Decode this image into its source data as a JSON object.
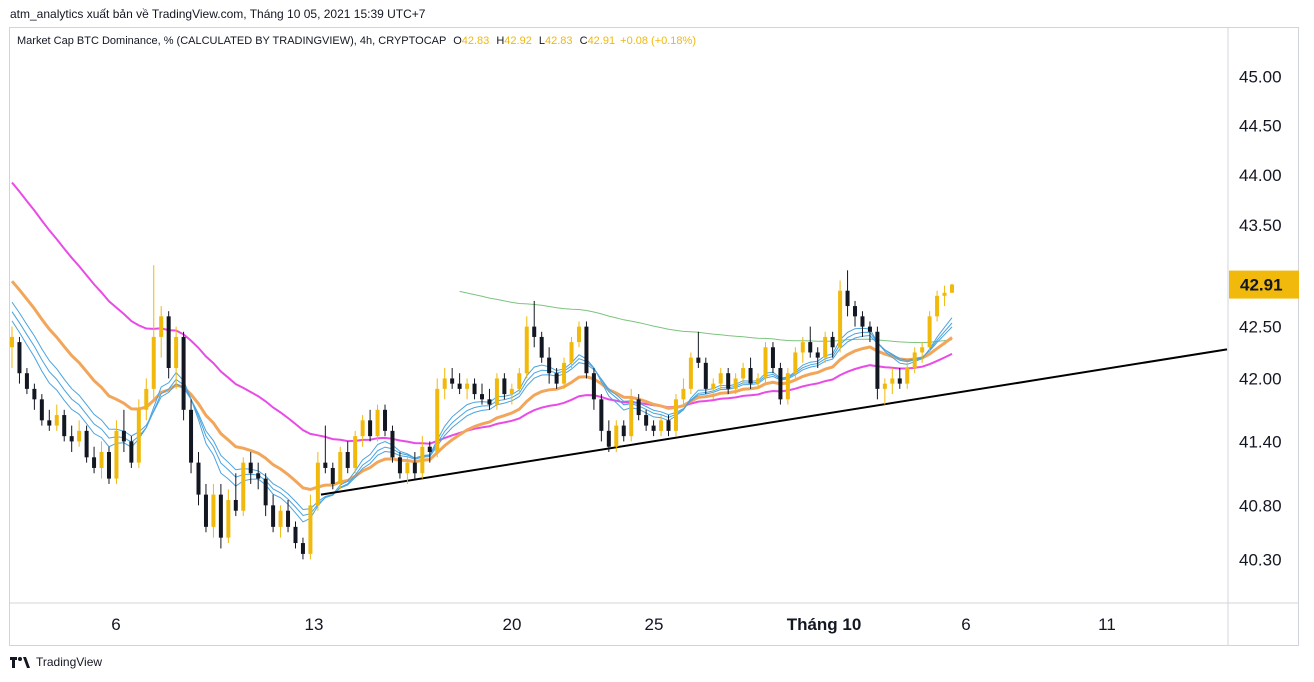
{
  "header": {
    "publisher_line": "atm_analytics xuất bản về TradingView.com, Tháng 10 05, 2021 15:39 UTC+7"
  },
  "legend": {
    "symbol": "Market Cap BTC Dominance, % (CALCULATED BY TRADINGVIEW), 4h, CRYPTOCAP",
    "o_label": "O",
    "o_value": "42.83",
    "h_label": "H",
    "h_value": "42.92",
    "l_label": "L",
    "l_value": "42.83",
    "c_label": "C",
    "c_value": "42.91",
    "change": "+0.08 (+0.18%)"
  },
  "footer": {
    "brand": "TradingView",
    "logo_icon": "tradingview-logo-icon"
  },
  "colors": {
    "candle_up": "#f0b90b",
    "candle_down": "#131722",
    "ema_orange": "#f2a65a",
    "ema_magenta": "#e94be6",
    "ema_green": "#7cc47f",
    "ribbon_blue": "#4aa3df",
    "trendline": "#000000",
    "price_tag": "#f0b90b"
  },
  "chart_data": {
    "type": "candlestick",
    "symbol": "Market Cap BTC Dominance, %",
    "timeframe": "4h",
    "x_ticks": [
      "6",
      "13",
      "20",
      "25",
      "Tháng 10",
      "6",
      "11"
    ],
    "y_ticks": [
      "45.00",
      "44.50",
      "44.00",
      "43.50",
      "42.50",
      "42.00",
      "41.40",
      "40.80",
      "40.30"
    ],
    "y_scale": "log",
    "ylim": [
      39.9,
      45.5
    ],
    "last_price": "42.91",
    "candles_ohlc": [
      [
        42.3,
        42.5,
        42.1,
        42.4
      ],
      [
        42.35,
        42.4,
        41.95,
        42.05
      ],
      [
        42.05,
        42.1,
        41.85,
        41.9
      ],
      [
        41.9,
        41.95,
        41.7,
        41.8
      ],
      [
        41.8,
        41.85,
        41.55,
        41.6
      ],
      [
        41.6,
        41.7,
        41.5,
        41.55
      ],
      [
        41.55,
        41.75,
        41.5,
        41.65
      ],
      [
        41.65,
        41.7,
        41.4,
        41.45
      ],
      [
        41.45,
        41.55,
        41.3,
        41.4
      ],
      [
        41.4,
        41.6,
        41.35,
        41.5
      ],
      [
        41.5,
        41.55,
        41.2,
        41.25
      ],
      [
        41.25,
        41.35,
        41.1,
        41.15
      ],
      [
        41.15,
        41.4,
        41.05,
        41.3
      ],
      [
        41.3,
        41.35,
        41.0,
        41.05
      ],
      [
        41.05,
        41.6,
        41.0,
        41.5
      ],
      [
        41.5,
        41.7,
        41.3,
        41.4
      ],
      [
        41.4,
        41.45,
        41.15,
        41.2
      ],
      [
        41.2,
        41.8,
        41.15,
        41.7
      ],
      [
        41.7,
        42.0,
        41.6,
        41.9
      ],
      [
        41.9,
        43.1,
        41.8,
        42.4
      ],
      [
        42.4,
        42.7,
        42.2,
        42.6
      ],
      [
        42.6,
        42.65,
        42.0,
        42.1
      ],
      [
        42.1,
        42.5,
        41.9,
        42.4
      ],
      [
        42.4,
        42.45,
        41.6,
        41.7
      ],
      [
        41.7,
        41.8,
        41.1,
        41.2
      ],
      [
        41.2,
        41.3,
        40.8,
        40.9
      ],
      [
        40.9,
        41.0,
        40.55,
        40.6
      ],
      [
        40.6,
        41.0,
        40.5,
        40.9
      ],
      [
        40.9,
        41.0,
        40.4,
        40.5
      ],
      [
        40.5,
        40.95,
        40.45,
        40.85
      ],
      [
        40.85,
        41.1,
        40.7,
        40.75
      ],
      [
        40.75,
        41.25,
        40.7,
        41.2
      ],
      [
        41.2,
        41.3,
        41.0,
        41.1
      ],
      [
        41.1,
        41.2,
        40.95,
        41.05
      ],
      [
        41.05,
        41.1,
        40.7,
        40.8
      ],
      [
        40.8,
        40.9,
        40.55,
        40.6
      ],
      [
        40.6,
        40.8,
        40.5,
        40.75
      ],
      [
        40.75,
        40.85,
        40.55,
        40.6
      ],
      [
        40.6,
        40.65,
        40.4,
        40.45
      ],
      [
        40.45,
        40.5,
        40.3,
        40.35
      ],
      [
        40.35,
        40.9,
        40.3,
        40.8
      ],
      [
        40.8,
        41.3,
        40.75,
        41.2
      ],
      [
        41.2,
        41.55,
        41.1,
        41.15
      ],
      [
        41.15,
        41.2,
        40.95,
        41.0
      ],
      [
        41.0,
        41.35,
        40.95,
        41.3
      ],
      [
        41.3,
        41.4,
        41.1,
        41.15
      ],
      [
        41.15,
        41.5,
        41.1,
        41.45
      ],
      [
        41.45,
        41.65,
        41.35,
        41.6
      ],
      [
        41.6,
        41.7,
        41.4,
        41.45
      ],
      [
        41.45,
        41.75,
        41.4,
        41.7
      ],
      [
        41.7,
        41.75,
        41.45,
        41.5
      ],
      [
        41.5,
        41.55,
        41.2,
        41.25
      ],
      [
        41.25,
        41.3,
        41.05,
        41.1
      ],
      [
        41.1,
        41.25,
        41.0,
        41.2
      ],
      [
        41.2,
        41.3,
        41.05,
        41.1
      ],
      [
        41.1,
        41.45,
        41.05,
        41.35
      ],
      [
        41.35,
        41.4,
        41.2,
        41.3
      ],
      [
        41.3,
        42.0,
        41.25,
        41.9
      ],
      [
        41.9,
        42.1,
        41.8,
        42.0
      ],
      [
        42.0,
        42.1,
        41.9,
        41.95
      ],
      [
        41.95,
        42.05,
        41.85,
        41.9
      ],
      [
        41.9,
        42.0,
        41.8,
        41.95
      ],
      [
        41.95,
        42.0,
        41.8,
        41.85
      ],
      [
        41.85,
        41.95,
        41.75,
        41.8
      ],
      [
        41.8,
        41.9,
        41.7,
        41.75
      ],
      [
        41.75,
        42.05,
        41.7,
        42.0
      ],
      [
        42.0,
        42.05,
        41.8,
        41.85
      ],
      [
        41.85,
        41.95,
        41.75,
        41.9
      ],
      [
        41.9,
        42.1,
        41.85,
        42.05
      ],
      [
        42.05,
        42.6,
        42.0,
        42.5
      ],
      [
        42.5,
        42.75,
        42.3,
        42.4
      ],
      [
        42.4,
        42.45,
        42.15,
        42.2
      ],
      [
        42.2,
        42.3,
        41.95,
        42.05
      ],
      [
        42.05,
        42.1,
        41.9,
        41.95
      ],
      [
        41.95,
        42.2,
        41.9,
        42.15
      ],
      [
        42.15,
        42.4,
        42.1,
        42.35
      ],
      [
        42.35,
        42.55,
        42.3,
        42.5
      ],
      [
        42.5,
        42.55,
        42.0,
        42.05
      ],
      [
        42.05,
        42.1,
        41.7,
        41.8
      ],
      [
        41.8,
        41.85,
        41.4,
        41.5
      ],
      [
        41.5,
        41.6,
        41.3,
        41.35
      ],
      [
        41.35,
        41.6,
        41.3,
        41.55
      ],
      [
        41.55,
        41.6,
        41.4,
        41.45
      ],
      [
        41.45,
        41.9,
        41.4,
        41.8
      ],
      [
        41.8,
        41.85,
        41.6,
        41.65
      ],
      [
        41.65,
        41.7,
        41.5,
        41.55
      ],
      [
        41.55,
        41.6,
        41.45,
        41.5
      ],
      [
        41.5,
        41.65,
        41.45,
        41.6
      ],
      [
        41.6,
        41.65,
        41.45,
        41.5
      ],
      [
        41.5,
        41.85,
        41.45,
        41.8
      ],
      [
        41.8,
        42.0,
        41.75,
        41.9
      ],
      [
        41.9,
        42.25,
        41.85,
        42.2
      ],
      [
        42.2,
        42.45,
        42.1,
        42.15
      ],
      [
        42.15,
        42.2,
        41.85,
        41.9
      ],
      [
        41.9,
        42.0,
        41.8,
        41.95
      ],
      [
        41.95,
        42.1,
        41.9,
        42.05
      ],
      [
        42.05,
        42.1,
        41.85,
        41.9
      ],
      [
        41.9,
        42.05,
        41.85,
        42.0
      ],
      [
        42.0,
        42.15,
        41.95,
        42.1
      ],
      [
        42.1,
        42.2,
        41.9,
        41.95
      ],
      [
        41.95,
        42.05,
        41.9,
        42.0
      ],
      [
        42.0,
        42.35,
        41.95,
        42.3
      ],
      [
        42.3,
        42.35,
        42.05,
        42.1
      ],
      [
        42.1,
        42.15,
        41.75,
        41.8
      ],
      [
        41.8,
        42.1,
        41.75,
        42.05
      ],
      [
        42.05,
        42.3,
        42.0,
        42.25
      ],
      [
        42.25,
        42.4,
        42.15,
        42.35
      ],
      [
        42.35,
        42.5,
        42.2,
        42.25
      ],
      [
        42.25,
        42.3,
        42.1,
        42.2
      ],
      [
        42.2,
        42.45,
        42.15,
        42.4
      ],
      [
        42.4,
        42.45,
        42.2,
        42.3
      ],
      [
        42.3,
        42.95,
        42.25,
        42.85
      ],
      [
        42.85,
        43.05,
        42.6,
        42.7
      ],
      [
        42.7,
        42.75,
        42.5,
        42.6
      ],
      [
        42.6,
        42.65,
        42.4,
        42.5
      ],
      [
        42.5,
        42.55,
        42.35,
        42.45
      ],
      [
        42.45,
        42.5,
        41.8,
        41.9
      ],
      [
        41.9,
        42.0,
        41.75,
        41.95
      ],
      [
        41.95,
        42.1,
        41.85,
        42.0
      ],
      [
        42.0,
        42.1,
        41.9,
        41.95
      ],
      [
        41.95,
        42.15,
        41.9,
        42.1
      ],
      [
        42.1,
        42.3,
        42.05,
        42.25
      ],
      [
        42.25,
        42.35,
        42.15,
        42.3
      ],
      [
        42.3,
        42.65,
        42.25,
        42.6
      ],
      [
        42.6,
        42.85,
        42.55,
        42.8
      ],
      [
        42.8,
        42.9,
        42.7,
        42.83
      ],
      [
        42.83,
        42.92,
        42.83,
        42.91
      ]
    ],
    "trendline": [
      [
        40.9,
        0.2555
      ],
      [
        42.28,
        1.0
      ]
    ],
    "series": [
      {
        "type": "ema",
        "color": "#7cc47f"
      },
      {
        "type": "ema",
        "color": "#e94be6"
      },
      {
        "type": "ema",
        "color": "#f2a65a"
      },
      {
        "type": "ema_ribbon",
        "color": "#4aa3df"
      }
    ]
  }
}
